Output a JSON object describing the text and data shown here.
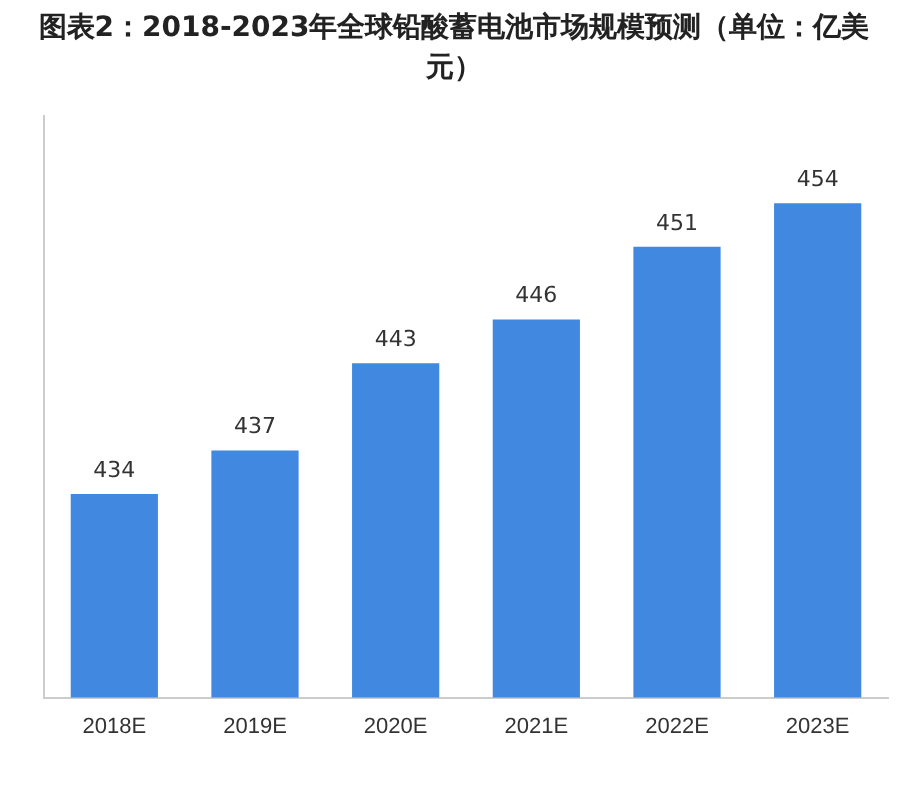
{
  "chart_data": {
    "type": "bar",
    "title": "图表2：2018-2023年全球铅酸蓄电池市场规模预测（单位：亿美元）",
    "categories": [
      "2018E",
      "2019E",
      "2020E",
      "2021E",
      "2022E",
      "2023E"
    ],
    "values": [
      434,
      437,
      443,
      446,
      451,
      454
    ],
    "color": "#4088e0",
    "ylim": [
      420,
      460
    ],
    "tick_labels": "x",
    "grid": false,
    "data_labels": true
  }
}
